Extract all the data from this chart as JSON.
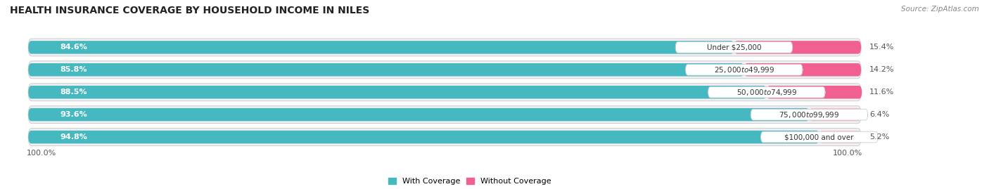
{
  "title": "HEALTH INSURANCE COVERAGE BY HOUSEHOLD INCOME IN NILES",
  "source": "Source: ZipAtlas.com",
  "categories": [
    "Under $25,000",
    "$25,000 to $49,999",
    "$50,000 to $74,999",
    "$75,000 to $99,999",
    "$100,000 and over"
  ],
  "with_coverage": [
    84.6,
    85.8,
    88.5,
    93.6,
    94.8
  ],
  "without_coverage": [
    15.4,
    14.2,
    11.6,
    6.4,
    5.2
  ],
  "with_coverage_color": "#45b8c0",
  "without_coverage_colors": [
    "#f06090",
    "#f06090",
    "#f06090",
    "#f8b8cc",
    "#f8c8d8"
  ],
  "row_bg_color": "#f0f0f5",
  "row_border_color": "#dddddd",
  "legend_with": "With Coverage",
  "legend_without": "Without Coverage",
  "total_label": "100.0%",
  "title_fontsize": 10,
  "label_fontsize": 8,
  "tick_fontsize": 8,
  "figsize": [
    14.06,
    2.69
  ],
  "dpi": 100,
  "x_min": 0,
  "x_max": 100
}
